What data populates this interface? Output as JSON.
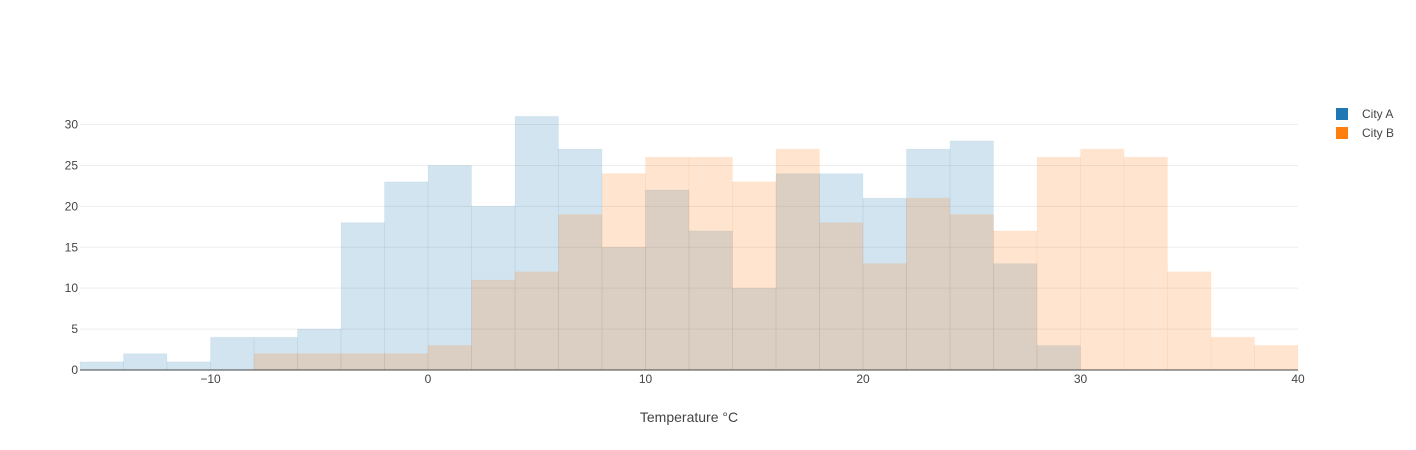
{
  "chart_data": {
    "type": "histogram",
    "barmode": "overlay",
    "xlabel": "Temperature °C",
    "ylabel": "",
    "xlim": [
      -16,
      40
    ],
    "ylim": [
      0,
      33
    ],
    "x_ticks": [
      -10,
      0,
      10,
      20,
      30,
      40
    ],
    "x_tick_labels": [
      "−10",
      "0",
      "10",
      "20",
      "30",
      "40"
    ],
    "y_ticks": [
      0,
      5,
      10,
      15,
      20,
      25,
      30
    ],
    "bin_size": 2,
    "grid": true,
    "legend_position": "top-right",
    "series": [
      {
        "name": "City A",
        "color": "#1f77b4",
        "bin_starts": [
          -16,
          -14,
          -12,
          -10,
          -8,
          -6,
          -4,
          -2,
          0,
          2,
          4,
          6,
          8,
          10,
          12,
          14,
          16,
          18,
          20,
          22,
          24,
          26,
          28
        ],
        "values": [
          1,
          2,
          1,
          4,
          4,
          5,
          18,
          23,
          25,
          20,
          31,
          27,
          15,
          22,
          17,
          10,
          24,
          24,
          21,
          27,
          28,
          13,
          3
        ]
      },
      {
        "name": "City B",
        "color": "#ff7f0e",
        "bin_starts": [
          -8,
          -6,
          -4,
          -2,
          0,
          2,
          4,
          6,
          8,
          10,
          12,
          14,
          16,
          18,
          20,
          22,
          24,
          26,
          28,
          30,
          32,
          34,
          36,
          38
        ],
        "values": [
          2,
          2,
          2,
          2,
          3,
          11,
          12,
          19,
          24,
          26,
          26,
          23,
          27,
          18,
          13,
          21,
          19,
          17,
          26,
          27,
          26,
          12,
          4,
          3
        ]
      }
    ]
  }
}
